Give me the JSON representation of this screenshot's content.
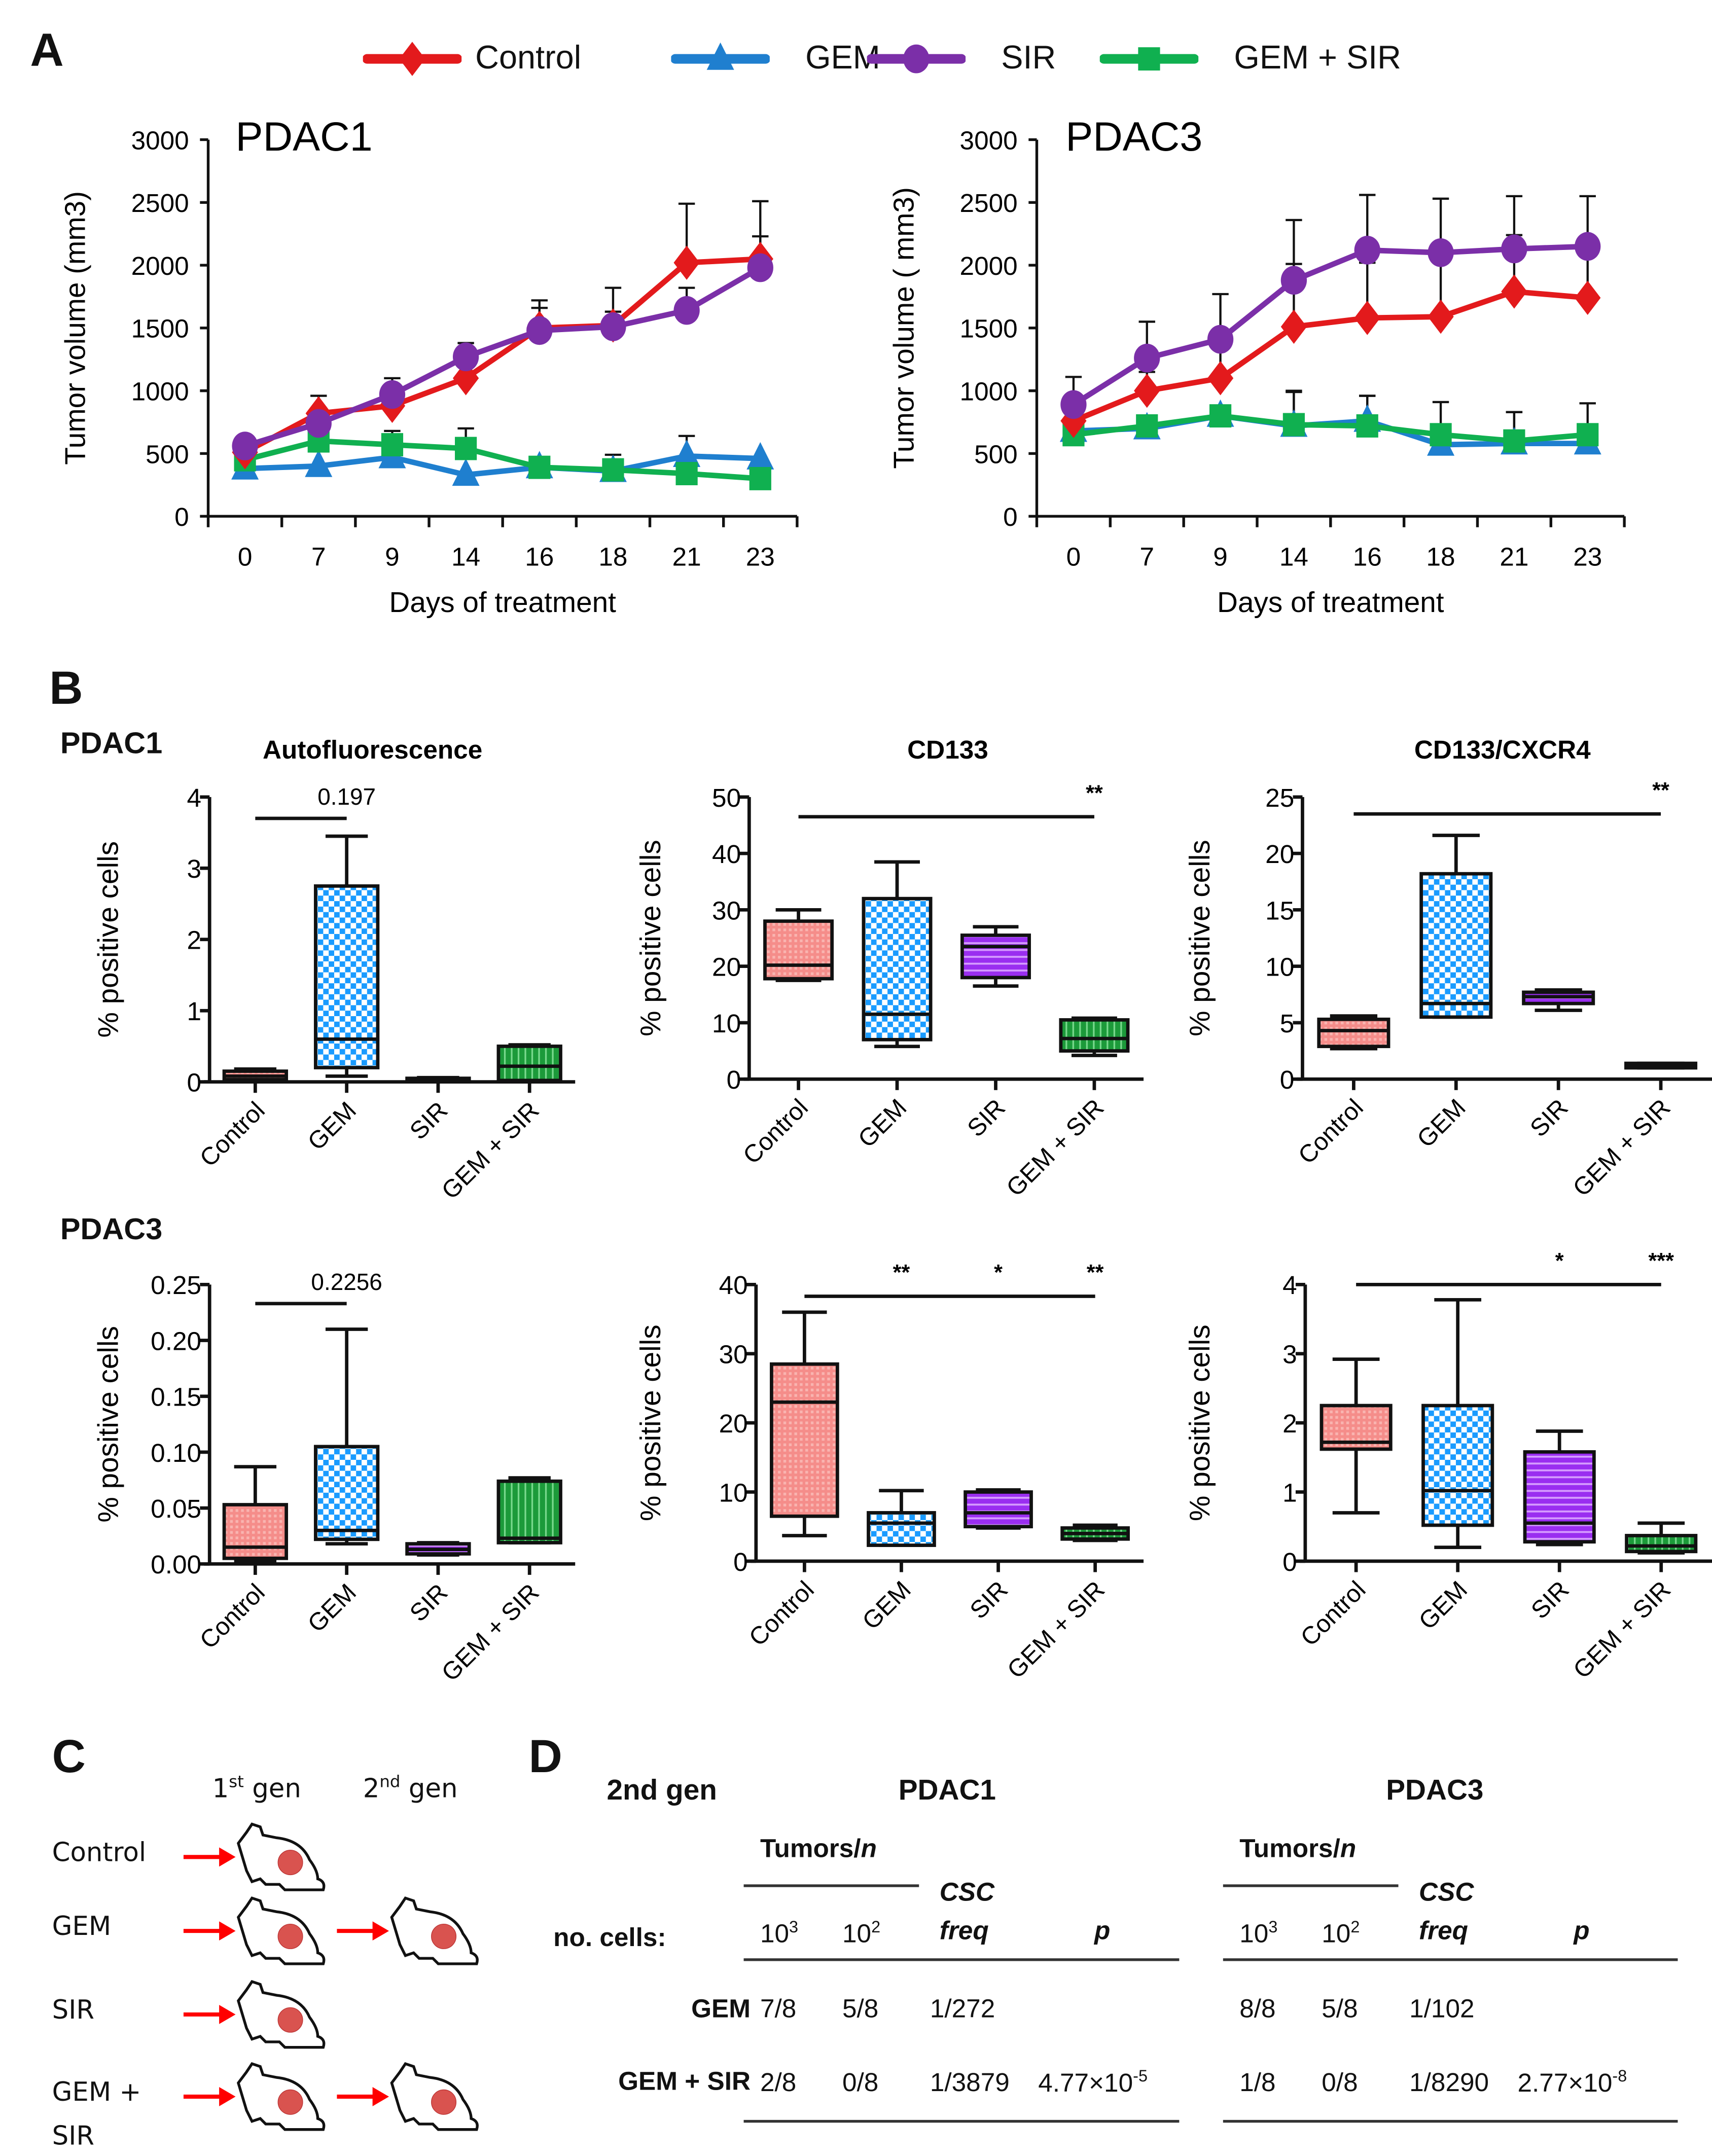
{
  "panels": {
    "A": "A",
    "B": "B",
    "C": "C",
    "D": "D"
  },
  "colors": {
    "control": "#e31a1c",
    "gem": "#1f7fcf",
    "sir": "#7b2fa8",
    "gemsir": "#10b050",
    "control_fill": "#f58d8a",
    "gem_fill": "#2ea8ff",
    "sir_fill": "#a64bf0",
    "gemsir_fill": "#20a040"
  },
  "legend": [
    {
      "key": "control",
      "label": "Control",
      "marker": "diamond"
    },
    {
      "key": "gem",
      "label": "GEM",
      "marker": "triangle"
    },
    {
      "key": "sir",
      "label": "SIR",
      "marker": "circle"
    },
    {
      "key": "gemsir",
      "label": "GEM + SIR",
      "marker": "square"
    }
  ],
  "chart_data": [
    {
      "id": "A-PDAC1",
      "type": "line",
      "title": "PDAC1",
      "xlabel": "Days of treatment",
      "ylabel": "Tumor volume (mm3)",
      "categories": [
        "0",
        "7",
        "9",
        "14",
        "16",
        "18",
        "21",
        "23"
      ],
      "ylim": [
        0,
        3000
      ],
      "yticks": [
        0,
        500,
        1000,
        1500,
        2000,
        2500,
        3000
      ],
      "series": [
        {
          "key": "control",
          "name": "Control",
          "values": [
            510,
            820,
            880,
            1100,
            1500,
            1520,
            2020,
            2050
          ],
          "err": [
            40,
            140,
            120,
            110,
            220,
            300,
            470,
            460
          ]
        },
        {
          "key": "gem",
          "name": "GEM",
          "values": [
            380,
            400,
            470,
            330,
            390,
            360,
            480,
            460
          ],
          "err": [
            20,
            20,
            20,
            20,
            20,
            20,
            160,
            20
          ]
        },
        {
          "key": "sir",
          "name": "SIR",
          "values": [
            560,
            740,
            970,
            1270,
            1480,
            1510,
            1640,
            1980
          ],
          "err": [
            30,
            30,
            130,
            110,
            180,
            120,
            180,
            250
          ]
        },
        {
          "key": "gemsir",
          "name": "GEM + SIR",
          "values": [
            450,
            600,
            570,
            540,
            390,
            370,
            340,
            300
          ],
          "err": [
            20,
            20,
            110,
            160,
            20,
            120,
            20,
            20
          ]
        }
      ]
    },
    {
      "id": "A-PDAC3",
      "type": "line",
      "title": "PDAC3",
      "xlabel": "Days of treatment",
      "ylabel": "Tumor volume ( mm3)",
      "categories": [
        "0",
        "7",
        "9",
        "14",
        "16",
        "18",
        "21",
        "23"
      ],
      "ylim": [
        0,
        3000
      ],
      "yticks": [
        0,
        500,
        1000,
        1500,
        2000,
        2500,
        3000
      ],
      "series": [
        {
          "key": "control",
          "name": "Control",
          "values": [
            760,
            1000,
            1100,
            1510,
            1580,
            1590,
            1790,
            1740
          ],
          "err": [
            20,
            150,
            250,
            500,
            440,
            500,
            450,
            450
          ]
        },
        {
          "key": "gem",
          "name": "GEM",
          "values": [
            680,
            700,
            800,
            720,
            760,
            570,
            580,
            580
          ],
          "err": [
            20,
            20,
            20,
            280,
            200,
            20,
            250,
            20
          ]
        },
        {
          "key": "sir",
          "name": "SIR",
          "values": [
            890,
            1260,
            1410,
            1880,
            2120,
            2100,
            2130,
            2150
          ],
          "err": [
            220,
            290,
            360,
            480,
            440,
            430,
            420,
            400
          ]
        },
        {
          "key": "gemsir",
          "name": "GEM + SIR",
          "values": [
            650,
            720,
            800,
            730,
            720,
            650,
            600,
            650
          ],
          "err": [
            20,
            20,
            20,
            260,
            240,
            260,
            230,
            250
          ]
        }
      ]
    },
    {
      "id": "B-PDAC1-auto",
      "type": "box",
      "title": "Autofluorescence",
      "row_label": "PDAC1",
      "ylabel": "% positive cells",
      "categories": [
        "Control",
        "GEM",
        "SIR",
        "GEM + SIR"
      ],
      "ylim": [
        0,
        4
      ],
      "yticks": [
        "0",
        "1",
        "2",
        "3",
        "4"
      ],
      "yticks_values": [
        0,
        1,
        2,
        3,
        4
      ],
      "boxes": [
        {
          "key": "control",
          "min": 0.05,
          "q1": 0.03,
          "median": 0.08,
          "q3": 0.15,
          "max": 0.18
        },
        {
          "key": "gem",
          "min": 0.08,
          "q1": 0.2,
          "median": 0.6,
          "q3": 2.75,
          "max": 3.45
        },
        {
          "key": "sir",
          "min": 0.01,
          "q1": 0.01,
          "median": 0.03,
          "q3": 0.05,
          "max": 0.06
        },
        {
          "key": "gemsir",
          "min": 0.02,
          "q1": 0.02,
          "median": 0.22,
          "q3": 0.5,
          "max": 0.52
        }
      ],
      "annotations": [
        {
          "from": 0,
          "to": 1,
          "y": 3.7,
          "label": "0.197",
          "label_at": 1
        }
      ]
    },
    {
      "id": "B-PDAC1-cd133",
      "type": "box",
      "title": "CD133",
      "ylabel": "% positive cells",
      "categories": [
        "Control",
        "GEM",
        "SIR",
        "GEM + SIR"
      ],
      "ylim": [
        0,
        50
      ],
      "yticks": [
        "0",
        "10",
        "20",
        "30",
        "40",
        "50"
      ],
      "yticks_values": [
        0,
        10,
        20,
        30,
        40,
        50
      ],
      "boxes": [
        {
          "key": "control",
          "min": 17.5,
          "q1": 17.8,
          "median": 20.2,
          "q3": 28,
          "max": 30
        },
        {
          "key": "gem",
          "min": 5.8,
          "q1": 7,
          "median": 11.5,
          "q3": 32,
          "max": 38.5
        },
        {
          "key": "sir",
          "min": 16.5,
          "q1": 18,
          "median": 23.5,
          "q3": 25.5,
          "max": 27
        },
        {
          "key": "gemsir",
          "min": 4.2,
          "q1": 5,
          "median": 7.2,
          "q3": 10.5,
          "max": 10.8
        }
      ],
      "annotations": [
        {
          "from": 0,
          "to": 3,
          "y": 46.5,
          "label": "**",
          "label_at": 3
        }
      ]
    },
    {
      "id": "B-PDAC1-cxcr4",
      "type": "box",
      "title": "CD133/CXCR4",
      "ylabel": "% positive cells",
      "categories": [
        "Control",
        "GEM",
        "SIR",
        "GEM + SIR"
      ],
      "ylim": [
        0,
        25
      ],
      "yticks": [
        "0",
        "5",
        "10",
        "15",
        "20",
        "25"
      ],
      "yticks_values": [
        0,
        5,
        10,
        15,
        20,
        25
      ],
      "boxes": [
        {
          "key": "control",
          "min": 2.7,
          "q1": 2.9,
          "median": 4.3,
          "q3": 5.3,
          "max": 5.6
        },
        {
          "key": "gem",
          "min": 5.5,
          "q1": 5.5,
          "median": 6.7,
          "q3": 18.2,
          "max": 21.6
        },
        {
          "key": "sir",
          "min": 6.1,
          "q1": 6.7,
          "median": 7.3,
          "q3": 7.7,
          "max": 7.9
        },
        {
          "key": "gemsir",
          "min": 1.0,
          "q1": 1.0,
          "median": 1.2,
          "q3": 1.4,
          "max": 1.4
        }
      ],
      "annotations": [
        {
          "from": 0,
          "to": 3,
          "y": 23.5,
          "label": "**",
          "label_at": 3
        }
      ]
    },
    {
      "id": "B-PDAC3-auto",
      "type": "box",
      "title": "",
      "row_label": "PDAC3",
      "ylabel": "% positive cells",
      "categories": [
        "Control",
        "GEM",
        "SIR",
        "GEM + SIR"
      ],
      "ylim": [
        0,
        0.25
      ],
      "yticks": [
        "0.00",
        "0.05",
        "0.10",
        "0.15",
        "0.20",
        "0.25"
      ],
      "yticks_values": [
        0,
        0.05,
        0.1,
        0.15,
        0.2,
        0.25
      ],
      "boxes": [
        {
          "key": "control",
          "min": 0.002,
          "q1": 0.005,
          "median": 0.015,
          "q3": 0.053,
          "max": 0.087
        },
        {
          "key": "gem",
          "min": 0.018,
          "q1": 0.022,
          "median": 0.03,
          "q3": 0.105,
          "max": 0.21
        },
        {
          "key": "sir",
          "min": 0.008,
          "q1": 0.009,
          "median": 0.013,
          "q3": 0.018,
          "max": 0.019
        },
        {
          "key": "gemsir",
          "min": 0.019,
          "q1": 0.019,
          "median": 0.023,
          "q3": 0.074,
          "max": 0.077
        }
      ],
      "annotations": [
        {
          "from": 0,
          "to": 1,
          "y": 0.233,
          "label": "0.2256",
          "label_at": 1
        }
      ]
    },
    {
      "id": "B-PDAC3-cd133",
      "type": "box",
      "title": "",
      "ylabel": "% positive cells",
      "categories": [
        "Control",
        "GEM",
        "SIR",
        "GEM + SIR"
      ],
      "ylim": [
        0,
        40
      ],
      "yticks": [
        "0",
        "10",
        "20",
        "30",
        "40"
      ],
      "yticks_values": [
        0,
        10,
        20,
        30,
        40
      ],
      "boxes": [
        {
          "key": "control",
          "min": 3.7,
          "q1": 6.5,
          "median": 23,
          "q3": 28.5,
          "max": 36
        },
        {
          "key": "gem",
          "min": 2.3,
          "q1": 2.3,
          "median": 5.5,
          "q3": 7,
          "max": 10.2
        },
        {
          "key": "sir",
          "min": 4.8,
          "q1": 5,
          "median": 7,
          "q3": 10,
          "max": 10.3
        },
        {
          "key": "gemsir",
          "min": 3,
          "q1": 3.2,
          "median": 4,
          "q3": 4.8,
          "max": 5.2
        }
      ],
      "annotations": [
        {
          "from": 0,
          "to": 3,
          "y": 38.3,
          "label": "",
          "label_at": 3
        }
      ],
      "stars": [
        {
          "at": 1,
          "label": "**"
        },
        {
          "at": 2,
          "label": "*"
        },
        {
          "at": 3,
          "label": "**"
        }
      ]
    },
    {
      "id": "B-PDAC3-cxcr4",
      "type": "box",
      "title": "",
      "ylabel": "% positive cells",
      "categories": [
        "Control",
        "GEM",
        "SIR",
        "GEM + SIR"
      ],
      "ylim": [
        0,
        4
      ],
      "yticks": [
        "0",
        "1",
        "2",
        "3",
        "4"
      ],
      "yticks_values": [
        0,
        1,
        2,
        3,
        4
      ],
      "boxes": [
        {
          "key": "control",
          "min": 0.7,
          "q1": 1.62,
          "median": 1.72,
          "q3": 2.25,
          "max": 2.92
        },
        {
          "key": "gem",
          "min": 0.2,
          "q1": 0.52,
          "median": 1.02,
          "q3": 2.25,
          "max": 3.78
        },
        {
          "key": "sir",
          "min": 0.24,
          "q1": 0.28,
          "median": 0.55,
          "q3": 1.58,
          "max": 1.88
        },
        {
          "key": "gemsir",
          "min": 0.12,
          "q1": 0.14,
          "median": 0.22,
          "q3": 0.37,
          "max": 0.55
        }
      ],
      "annotations": [
        {
          "from": 0,
          "to": 3,
          "y": 4.0,
          "label": "",
          "label_at": 3
        }
      ],
      "stars": [
        {
          "at": 2,
          "label": "*"
        },
        {
          "at": 3,
          "label": "***"
        }
      ]
    }
  ],
  "panelC": {
    "col1": "1",
    "col1_sup": "st",
    "col1_suffix": " gen",
    "col2": "2",
    "col2_sup": "nd",
    "col2_suffix": " gen",
    "rows": [
      {
        "label": "Control",
        "gen2": false
      },
      {
        "label": "GEM",
        "gen2": true
      },
      {
        "label": "SIR",
        "gen2": false
      },
      {
        "label": "GEM +",
        "label2": "SIR",
        "gen2": true
      }
    ]
  },
  "panelD": {
    "title_left": "2nd gen",
    "row_header": "no. cells:",
    "tumors_n": "Tumors/",
    "tumors_n_italic": "n",
    "csc": "CSC",
    "freq": "freq",
    "p": "p",
    "dose1_base": "10",
    "dose1_exp": "3",
    "dose2_base": "10",
    "dose2_exp": "2",
    "row_labels": [
      "GEM",
      "GEM + SIR"
    ],
    "tables": [
      {
        "title": "PDAC1",
        "rows": [
          {
            "d1": "7/8",
            "d2": "5/8",
            "freq": "1/272",
            "p_base": "",
            "p_exp": ""
          },
          {
            "d1": "2/8",
            "d2": "0/8",
            "freq": "1/3879",
            "p_base": "4.77×10",
            "p_exp": "-5"
          }
        ]
      },
      {
        "title": "PDAC3",
        "rows": [
          {
            "d1": "8/8",
            "d2": "5/8",
            "freq": "1/102",
            "p_base": "",
            "p_exp": ""
          },
          {
            "d1": "1/8",
            "d2": "0/8",
            "freq": "1/8290",
            "p_base": "2.77×10",
            "p_exp": "-8"
          }
        ]
      }
    ]
  }
}
